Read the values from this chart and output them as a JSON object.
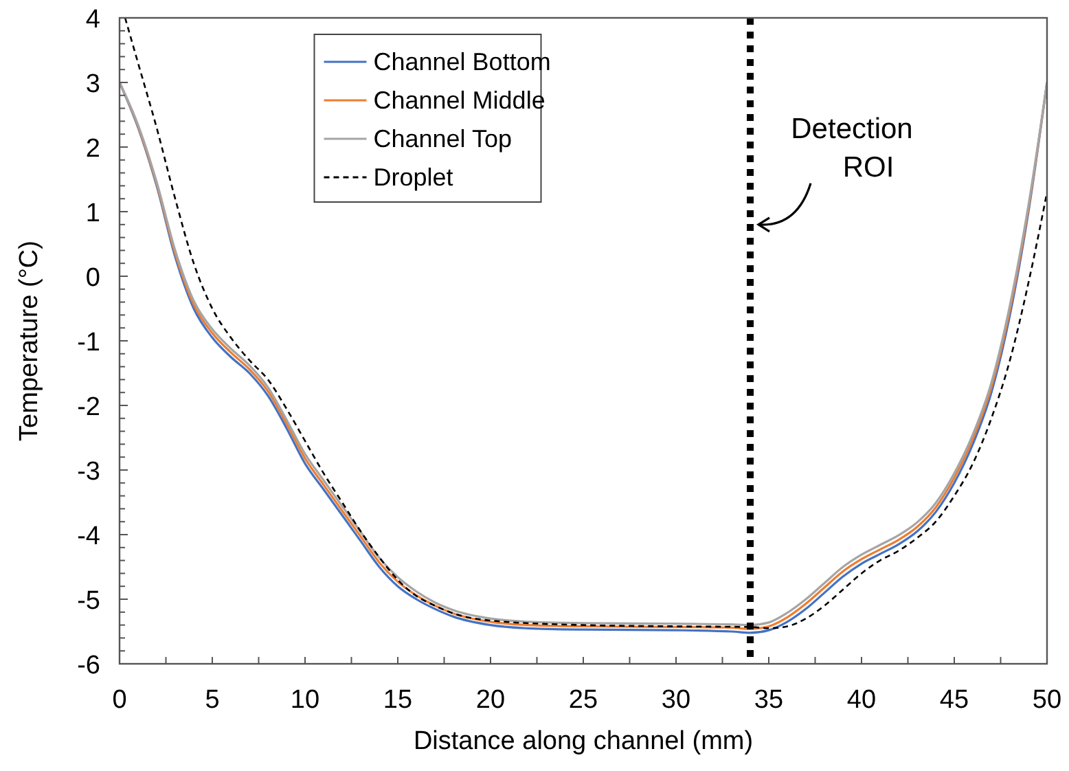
{
  "chart_data": {
    "type": "line",
    "xlabel": "Distance along channel (mm)",
    "ylabel": "Temperature (°C)",
    "xlim": [
      0,
      50
    ],
    "ylim": [
      -6,
      4
    ],
    "xticks": [
      0,
      {
        "value": 2.5,
        "label": null
      },
      5,
      {
        "value": 7.5,
        "label": null
      },
      10,
      {
        "value": 12.5,
        "label": null
      },
      15,
      {
        "value": 17.5,
        "label": null
      },
      20,
      {
        "value": 22.5,
        "label": null
      },
      25,
      {
        "value": 27.5,
        "label": null
      },
      30,
      {
        "value": 32.5,
        "label": null
      },
      35,
      {
        "value": 37.5,
        "label": null
      },
      40,
      {
        "value": 42.5,
        "label": null
      },
      45,
      {
        "value": 47.5,
        "label": null
      },
      50
    ],
    "yticks": [
      -6,
      {
        "value": -5.8,
        "label": null
      },
      {
        "value": -5.6,
        "label": null
      },
      {
        "value": -5.4,
        "label": null
      },
      {
        "value": -5.2,
        "label": null
      },
      -5,
      {
        "value": -4.8,
        "label": null
      },
      {
        "value": -4.6,
        "label": null
      },
      {
        "value": -4.4,
        "label": null
      },
      {
        "value": -4.2,
        "label": null
      },
      -4,
      {
        "value": -3.8,
        "label": null
      },
      {
        "value": -3.6,
        "label": null
      },
      {
        "value": -3.4,
        "label": null
      },
      {
        "value": -3.2,
        "label": null
      },
      -3,
      {
        "value": -2.8,
        "label": null
      },
      {
        "value": -2.6,
        "label": null
      },
      {
        "value": -2.4,
        "label": null
      },
      {
        "value": -2.2,
        "label": null
      },
      -2,
      {
        "value": -1.8,
        "label": null
      },
      {
        "value": -1.6,
        "label": null
      },
      {
        "value": -1.4,
        "label": null
      },
      {
        "value": -1.2,
        "label": null
      },
      -1,
      {
        "value": -0.8,
        "label": null
      },
      {
        "value": -0.6,
        "label": null
      },
      {
        "value": -0.4,
        "label": null
      },
      {
        "value": -0.2,
        "label": null
      },
      0,
      {
        "value": 0.2,
        "label": null
      },
      {
        "value": 0.4,
        "label": null
      },
      {
        "value": 0.6,
        "label": null
      },
      {
        "value": 0.8,
        "label": null
      },
      1,
      {
        "value": 1.2,
        "label": null
      },
      {
        "value": 1.4,
        "label": null
      },
      {
        "value": 1.6,
        "label": null
      },
      {
        "value": 1.8,
        "label": null
      },
      2,
      {
        "value": 2.2,
        "label": null
      },
      {
        "value": 2.4,
        "label": null
      },
      {
        "value": 2.6,
        "label": null
      },
      {
        "value": 2.8,
        "label": null
      },
      3,
      {
        "value": 3.2,
        "label": null
      },
      {
        "value": 3.4,
        "label": null
      },
      {
        "value": 3.6,
        "label": null
      },
      {
        "value": 3.8,
        "label": null
      },
      4
    ],
    "grid": false,
    "legend": "top left",
    "x": [
      0,
      1,
      2,
      3,
      4,
      5,
      6,
      7,
      8,
      9,
      10,
      11,
      12,
      13,
      14,
      15,
      16,
      17,
      18,
      20,
      22,
      25,
      30,
      33,
      34,
      35,
      36,
      37,
      38,
      39,
      40,
      41,
      42,
      43,
      44,
      45,
      46,
      47,
      48,
      49,
      50
    ],
    "series": [
      {
        "name": "Channel Bottom",
        "color": "#4472c4",
        "line_style": "solid",
        "values": [
          3.0,
          2.3,
          1.4,
          0.3,
          -0.5,
          -0.95,
          -1.25,
          -1.5,
          -1.85,
          -2.35,
          -2.9,
          -3.3,
          -3.7,
          -4.1,
          -4.5,
          -4.8,
          -5.0,
          -5.15,
          -5.27,
          -5.4,
          -5.45,
          -5.47,
          -5.48,
          -5.5,
          -5.52,
          -5.48,
          -5.35,
          -5.15,
          -4.9,
          -4.65,
          -4.45,
          -4.3,
          -4.15,
          -3.95,
          -3.65,
          -3.2,
          -2.6,
          -1.8,
          -0.6,
          1.0,
          3.0
        ]
      },
      {
        "name": "Channel Middle",
        "color": "#ed7d31",
        "line_style": "solid",
        "values": [
          3.0,
          2.32,
          1.43,
          0.35,
          -0.44,
          -0.88,
          -1.18,
          -1.44,
          -1.78,
          -2.28,
          -2.82,
          -3.23,
          -3.63,
          -4.03,
          -4.43,
          -4.73,
          -4.94,
          -5.1,
          -5.22,
          -5.35,
          -5.4,
          -5.42,
          -5.43,
          -5.44,
          -5.46,
          -5.42,
          -5.28,
          -5.07,
          -4.82,
          -4.57,
          -4.38,
          -4.23,
          -4.08,
          -3.88,
          -3.58,
          -3.12,
          -2.52,
          -1.72,
          -0.52,
          1.05,
          3.0
        ]
      },
      {
        "name": "Channel Top",
        "color": "#a5a5a5",
        "line_style": "solid",
        "values": [
          3.0,
          2.34,
          1.46,
          0.4,
          -0.38,
          -0.82,
          -1.12,
          -1.38,
          -1.72,
          -2.22,
          -2.75,
          -3.16,
          -3.56,
          -3.96,
          -4.36,
          -4.66,
          -4.88,
          -5.05,
          -5.17,
          -5.3,
          -5.35,
          -5.37,
          -5.38,
          -5.39,
          -5.4,
          -5.36,
          -5.21,
          -5.0,
          -4.75,
          -4.5,
          -4.31,
          -4.16,
          -4.01,
          -3.81,
          -3.51,
          -3.05,
          -2.45,
          -1.65,
          -0.45,
          1.1,
          3.0
        ]
      },
      {
        "name": "Droplet",
        "color": "#000000",
        "line_style": "dashed",
        "x": [
          0.3,
          1,
          2,
          3,
          4,
          5,
          6,
          7,
          8,
          9,
          10,
          11,
          12,
          13,
          14,
          15,
          16,
          17,
          18,
          20,
          25,
          30,
          34,
          35,
          36,
          37,
          38,
          39,
          40,
          41,
          42,
          43,
          44,
          45,
          46,
          47,
          48,
          49,
          50
        ],
        "values": [
          4.0,
          3.3,
          2.3,
          1.2,
          0.2,
          -0.5,
          -0.95,
          -1.3,
          -1.6,
          -2.05,
          -2.55,
          -3.05,
          -3.5,
          -3.95,
          -4.35,
          -4.7,
          -4.95,
          -5.1,
          -5.22,
          -5.33,
          -5.4,
          -5.42,
          -5.43,
          -5.45,
          -5.42,
          -5.3,
          -5.1,
          -4.85,
          -4.6,
          -4.4,
          -4.25,
          -4.05,
          -3.8,
          -3.4,
          -2.9,
          -2.2,
          -1.3,
          -0.1,
          1.3
        ]
      }
    ],
    "ref_lines": [
      {
        "axis": "x",
        "value": 34,
        "color": "#000000",
        "line_style": "dotted"
      }
    ],
    "annotations": [
      {
        "text": "Detection ROI",
        "x": 34,
        "y": 0.8
      }
    ]
  }
}
